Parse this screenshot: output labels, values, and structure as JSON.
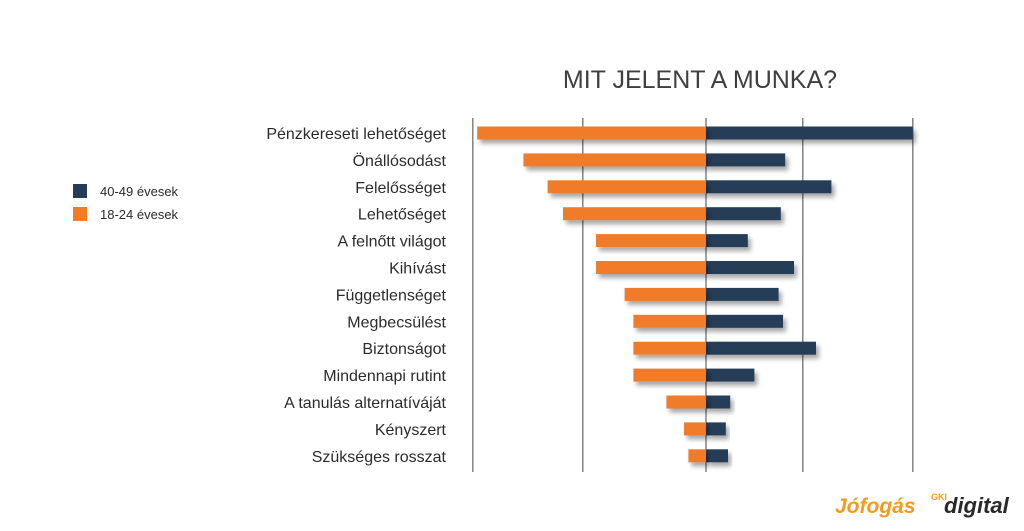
{
  "chart_data": {
    "type": "bar",
    "orientation": "horizontal-diverging",
    "title": "MIT JELENT A MUNKA?",
    "categories": [
      "Pénzkereseti lehetőséget",
      "Önállósodást",
      "Felelősséget",
      "Lehetőséget",
      "A felnőtt világot",
      "Kihívást",
      "Függetlenséget",
      "Megbecsülést",
      "Biztonságot",
      "Mindennapi rutint",
      "A tanulás alternatíváját",
      "Kényszert",
      "Szükséges rosszat"
    ],
    "series": [
      {
        "name": "40-49 évesek",
        "color": "#253d58",
        "direction": "right",
        "values": [
          47,
          18,
          28.5,
          17,
          9.5,
          20,
          16.5,
          17.5,
          25,
          11,
          5.5,
          4.5,
          5
        ]
      },
      {
        "name": "18-24 évesek",
        "color": "#f07c2a",
        "direction": "left",
        "values": [
          52,
          41.5,
          36,
          32.5,
          25,
          25,
          18.5,
          16.5,
          16.5,
          16.5,
          9,
          5,
          4
        ]
      }
    ],
    "legend_order": [
      "40-49 évesek",
      "18-24 évesek"
    ],
    "grid": true,
    "xlim": [
      -53,
      47
    ],
    "xlabel": "",
    "ylabel": ""
  },
  "logos": {
    "jofogas": "Jófogás",
    "digital_small": "GKI",
    "digital": "digital"
  }
}
